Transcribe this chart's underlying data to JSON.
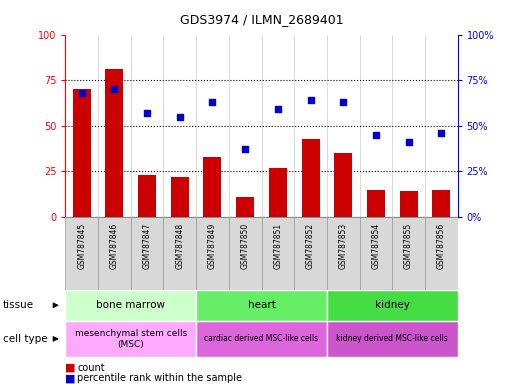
{
  "title": "GDS3974 / ILMN_2689401",
  "samples": [
    "GSM787845",
    "GSM787846",
    "GSM787847",
    "GSM787848",
    "GSM787849",
    "GSM787850",
    "GSM787851",
    "GSM787852",
    "GSM787853",
    "GSM787854",
    "GSM787855",
    "GSM787856"
  ],
  "counts": [
    70,
    81,
    23,
    22,
    33,
    11,
    27,
    43,
    35,
    15,
    14,
    15
  ],
  "percentiles": [
    68,
    70,
    57,
    55,
    63,
    37,
    59,
    64,
    63,
    45,
    41,
    46
  ],
  "bar_color": "#cc0000",
  "dot_color": "#0000cc",
  "ylim": [
    0,
    100
  ],
  "yticks": [
    0,
    25,
    50,
    75,
    100
  ],
  "tissue_groups": [
    {
      "label": "bone marrow",
      "start": 0,
      "end": 3,
      "color": "#ccffcc"
    },
    {
      "label": "heart",
      "start": 4,
      "end": 7,
      "color": "#66ee66"
    },
    {
      "label": "kidney",
      "start": 8,
      "end": 11,
      "color": "#44dd44"
    }
  ],
  "celltype_groups": [
    {
      "label": "mesenchymal stem cells\n(MSC)",
      "start": 0,
      "end": 3,
      "color": "#ffaaff"
    },
    {
      "label": "cardiac derived MSC-like cells",
      "start": 4,
      "end": 7,
      "color": "#dd66dd"
    },
    {
      "label": "kidney derived MSC-like cells",
      "start": 8,
      "end": 11,
      "color": "#cc55cc"
    }
  ],
  "tissue_row_label": "tissue",
  "celltype_row_label": "cell type",
  "legend_count_label": "count",
  "legend_percentile_label": "percentile rank within the sample",
  "tick_bg_color": "#d8d8d8",
  "tick_border_color": "#999999"
}
